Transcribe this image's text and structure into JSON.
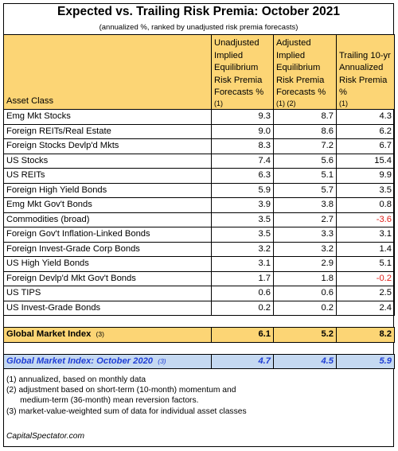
{
  "title": "Expected vs. Trailing Risk Premia: October 2021",
  "subtitle": "(annualized %, ranked by unadjusted risk premia forecasts)",
  "headers": {
    "asset_class": "Asset Class",
    "unadjusted": "Unadjusted Implied Equilibrium Risk Premia Forecasts %",
    "unadjusted_note": "(1)",
    "adjusted": "Adjusted Implied Equilibrium Risk Premia Forecasts %",
    "adjusted_note": "(1) (2)",
    "trailing": "Trailing 10-yr Annualized Risk Premia %",
    "trailing_note": "(1)"
  },
  "rows": [
    {
      "name": "Emg Mkt Stocks",
      "unadjusted": "9.3",
      "adjusted": "8.7",
      "trailing": "4.3",
      "negative": false
    },
    {
      "name": "Foreign REITs/Real Estate",
      "unadjusted": "9.0",
      "adjusted": "8.6",
      "trailing": "6.2",
      "negative": false
    },
    {
      "name": "Foreign Stocks Devlp'd Mkts",
      "unadjusted": "8.3",
      "adjusted": "7.2",
      "trailing": "6.7",
      "negative": false
    },
    {
      "name": "US Stocks",
      "unadjusted": "7.4",
      "adjusted": "5.6",
      "trailing": "15.4",
      "negative": false
    },
    {
      "name": "US REITs",
      "unadjusted": "6.3",
      "adjusted": "5.1",
      "trailing": "9.9",
      "negative": false
    },
    {
      "name": "Foreign High Yield Bonds",
      "unadjusted": "5.9",
      "adjusted": "5.7",
      "trailing": "3.5",
      "negative": false
    },
    {
      "name": "Emg Mkt Gov't Bonds",
      "unadjusted": "3.9",
      "adjusted": "3.8",
      "trailing": "0.8",
      "negative": false
    },
    {
      "name": "Commodities (broad)",
      "unadjusted": "3.5",
      "adjusted": "2.7",
      "trailing": "-3.6",
      "negative": true
    },
    {
      "name": "Foreign Gov't Inflation-Linked Bonds",
      "unadjusted": "3.5",
      "adjusted": "3.3",
      "trailing": "3.1",
      "negative": false
    },
    {
      "name": "Foreign Invest-Grade Corp Bonds",
      "unadjusted": "3.2",
      "adjusted": "3.2",
      "trailing": "1.4",
      "negative": false
    },
    {
      "name": "US High Yield Bonds",
      "unadjusted": "3.1",
      "adjusted": "2.9",
      "trailing": "5.1",
      "negative": false
    },
    {
      "name": "Foreign Devlp'd Mkt Gov't Bonds",
      "unadjusted": "1.7",
      "adjusted": "1.8",
      "trailing": "-0.2",
      "negative": true
    },
    {
      "name": "US TIPS",
      "unadjusted": "0.6",
      "adjusted": "0.6",
      "trailing": "2.5",
      "negative": false
    },
    {
      "name": "US Invest-Grade Bonds",
      "unadjusted": "0.2",
      "adjusted": "0.2",
      "trailing": "2.4",
      "negative": false
    }
  ],
  "gmi": {
    "name": "Global Market Index",
    "note": "(3)",
    "unadjusted": "6.1",
    "adjusted": "5.2",
    "trailing": "8.2"
  },
  "gmi_prior": {
    "name": "Global Market Index: October 2020",
    "note": "(3)",
    "unadjusted": "4.7",
    "adjusted": "4.5",
    "trailing": "5.9"
  },
  "notes": [
    "(1) annualized, based on monthly data",
    "(2) adjustment based on short-term (10-month) momentum and",
    "      medium-term (36-month) mean reversion factors.",
    "(3) market-value-weighted sum of data for individual asset classes"
  ],
  "source": "CapitalSpectator.com",
  "colors": {
    "header_bg": "#fcd575",
    "prior_bg": "#c5d9f1",
    "prior_text": "#1f3ed6",
    "negative": "#e0201a"
  }
}
